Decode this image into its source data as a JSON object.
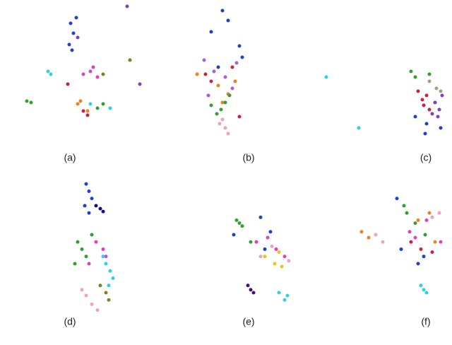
{
  "chart_data": [
    {
      "type": "scatter",
      "label": "(a)",
      "xlim": [
        0,
        100
      ],
      "ylim": [
        0,
        100
      ],
      "series": [
        {
          "color": "#1f3fd0",
          "x": [
            47,
            49,
            46,
            51,
            48
          ],
          "y": [
            86,
            79,
            71,
            90,
            67
          ]
        },
        {
          "color": "#e040c0",
          "x": [
            61,
            56,
            66,
            63
          ],
          "y": [
            52,
            50,
            48,
            55
          ]
        },
        {
          "color": "#f08020",
          "x": [
            52,
            54,
            59
          ],
          "y": [
            29,
            31,
            24
          ]
        },
        {
          "color": "#30a030",
          "x": [
            16,
            19,
            70,
            66
          ],
          "y": [
            31,
            30,
            29,
            26
          ]
        },
        {
          "color": "#30d0e0",
          "x": [
            31,
            33,
            75,
            61
          ],
          "y": [
            52,
            50,
            26,
            29
          ]
        },
        {
          "color": "#8040c0",
          "x": [
            87,
            96,
            52
          ],
          "y": [
            98,
            43,
            76
          ]
        },
        {
          "color": "#d02040",
          "x": [
            56,
            59,
            45
          ],
          "y": [
            24,
            21,
            43
          ]
        },
        {
          "color": "#808020",
          "x": [
            89,
            70
          ],
          "y": [
            60,
            50
          ]
        }
      ]
    },
    {
      "type": "scatter",
      "label": "(b)",
      "xlim": [
        0,
        100
      ],
      "ylim": [
        0,
        100
      ],
      "series": [
        {
          "color": "#1f3fd0",
          "x": [
            48,
            52,
            60,
            62,
            40,
            45
          ],
          "y": [
            95,
            88,
            70,
            62,
            80,
            55
          ]
        },
        {
          "color": "#a060e0",
          "x": [
            35,
            42,
            50,
            55,
            58,
            38
          ],
          "y": [
            60,
            52,
            48,
            40,
            58,
            35
          ]
        },
        {
          "color": "#f08020",
          "x": [
            30,
            45,
            52,
            57,
            48
          ],
          "y": [
            50,
            42,
            36,
            45,
            30
          ]
        },
        {
          "color": "#30a030",
          "x": [
            40,
            44,
            50,
            53,
            47
          ],
          "y": [
            28,
            22,
            30,
            35,
            25
          ]
        },
        {
          "color": "#f0a0c0",
          "x": [
            48,
            50,
            52,
            46
          ],
          "y": [
            18,
            12,
            8,
            15
          ]
        },
        {
          "color": "#d02040",
          "x": [
            36,
            40,
            55,
            60
          ],
          "y": [
            50,
            45,
            55,
            20
          ]
        }
      ]
    },
    {
      "type": "scatter",
      "label": "(c)",
      "xlim": [
        0,
        100
      ],
      "ylim": [
        0,
        100
      ],
      "series": [
        {
          "color": "#30a030",
          "x": [
            75,
            78,
            88,
            92
          ],
          "y": [
            52,
            48,
            50,
            30
          ]
        },
        {
          "color": "#d02040",
          "x": [
            80,
            83,
            86,
            84,
            88
          ],
          "y": [
            38,
            32,
            35,
            28,
            25
          ]
        },
        {
          "color": "#8040c0",
          "x": [
            92,
            95,
            97,
            94,
            90
          ],
          "y": [
            30,
            25,
            35,
            20,
            22
          ]
        },
        {
          "color": "#1f3fd0",
          "x": [
            78,
            86,
            96,
            85
          ],
          "y": [
            20,
            15,
            12,
            8
          ]
        },
        {
          "color": "#a0a080",
          "x": [
            88,
            93,
            96
          ],
          "y": [
            45,
            40,
            38
          ]
        },
        {
          "color": "#30d0e0",
          "x": [
            15,
            38
          ],
          "y": [
            48,
            12
          ]
        }
      ]
    },
    {
      "type": "scatter",
      "label": "(d)",
      "xlim": [
        0,
        100
      ],
      "ylim": [
        0,
        100
      ],
      "series": [
        {
          "color": "#1f3fd0",
          "x": [
            58,
            60,
            62,
            57,
            60
          ],
          "y": [
            95,
            90,
            85,
            80,
            75
          ]
        },
        {
          "color": "#101080",
          "x": [
            65,
            68,
            70
          ],
          "y": [
            80,
            78,
            76
          ]
        },
        {
          "color": "#30a030",
          "x": [
            52,
            55,
            58,
            62,
            50
          ],
          "y": [
            55,
            50,
            45,
            60,
            40
          ]
        },
        {
          "color": "#e040c0",
          "x": [
            65,
            70,
            72,
            60
          ],
          "y": [
            55,
            50,
            45,
            40
          ]
        },
        {
          "color": "#30d0e0",
          "x": [
            72,
            75,
            77,
            70,
            74
          ],
          "y": [
            40,
            35,
            30,
            45,
            25
          ]
        },
        {
          "color": "#f0a0c0",
          "x": [
            55,
            58,
            62,
            66
          ],
          "y": [
            22,
            18,
            12,
            8
          ]
        },
        {
          "color": "#808020",
          "x": [
            68,
            72,
            74
          ],
          "y": [
            25,
            20,
            15
          ]
        }
      ]
    },
    {
      "type": "scatter",
      "label": "(e)",
      "xlim": [
        0,
        100
      ],
      "ylim": [
        0,
        100
      ],
      "series": [
        {
          "color": "#30a030",
          "x": [
            58,
            60,
            62,
            68
          ],
          "y": [
            70,
            68,
            66,
            55
          ]
        },
        {
          "color": "#1f3fd0",
          "x": [
            56,
            75,
            78,
            82
          ],
          "y": [
            60,
            72,
            50,
            62
          ]
        },
        {
          "color": "#f0c020",
          "x": [
            78,
            85,
            88,
            90
          ],
          "y": [
            45,
            40,
            48,
            38
          ]
        },
        {
          "color": "#e040c0",
          "x": [
            72,
            80,
            86,
            92
          ],
          "y": [
            55,
            58,
            50,
            45
          ]
        },
        {
          "color": "#401080",
          "x": [
            66,
            68,
            70
          ],
          "y": [
            25,
            22,
            20
          ]
        },
        {
          "color": "#30d0e0",
          "x": [
            88,
            92,
            94
          ],
          "y": [
            20,
            15,
            18
          ]
        },
        {
          "color": "#f0a0c0",
          "x": [
            75,
            83,
            95
          ],
          "y": [
            45,
            52,
            42
          ]
        }
      ]
    },
    {
      "type": "scatter",
      "label": "(f)",
      "xlim": [
        0,
        100
      ],
      "ylim": [
        0,
        100
      ],
      "series": [
        {
          "color": "#f08020",
          "x": [
            40,
            45,
            80,
            88,
            92
          ],
          "y": [
            62,
            58,
            70,
            75,
            55
          ]
        },
        {
          "color": "#30a030",
          "x": [
            70,
            72,
            78,
            85
          ],
          "y": [
            80,
            75,
            68,
            60
          ]
        },
        {
          "color": "#d02040",
          "x": [
            75,
            82,
            90
          ],
          "y": [
            55,
            50,
            48
          ]
        },
        {
          "color": "#1f3fd0",
          "x": [
            65,
            68,
            80,
            84
          ],
          "y": [
            85,
            50,
            40,
            45
          ]
        },
        {
          "color": "#e040c0",
          "x": [
            74,
            78,
            86,
            96
          ],
          "y": [
            62,
            58,
            70,
            55
          ]
        },
        {
          "color": "#30d0e0",
          "x": [
            82,
            84,
            86
          ],
          "y": [
            25,
            22,
            20
          ]
        },
        {
          "color": "#f0a0c0",
          "x": [
            50,
            55,
            90,
            95
          ],
          "y": [
            60,
            55,
            72,
            75
          ]
        }
      ]
    }
  ]
}
